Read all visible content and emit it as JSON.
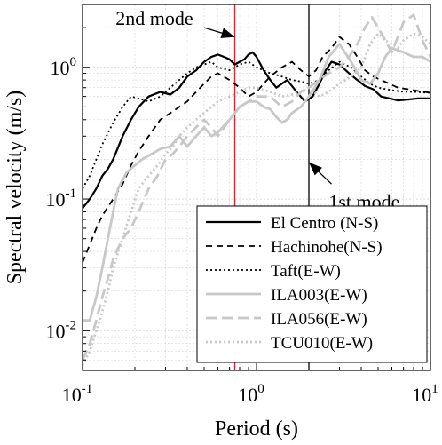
{
  "chart_data": {
    "type": "line",
    "title": "",
    "xlabel": "Period (s)",
    "ylabel": "Spectral velocity (m/s)",
    "xscale": "log",
    "yscale": "log",
    "xlim": [
      0.1,
      10
    ],
    "ylim": [
      0.005,
      3
    ],
    "grid": true,
    "legend_position": "bottom-right",
    "x_ticks": [
      {
        "value": 0.1,
        "base": "10",
        "exp": "-1"
      },
      {
        "value": 1,
        "base": "10",
        "exp": "0"
      },
      {
        "value": 10,
        "base": "10",
        "exp": "1"
      }
    ],
    "y_ticks": [
      {
        "value": 0.01,
        "base": "10",
        "exp": "-2"
      },
      {
        "value": 0.1,
        "base": "10",
        "exp": "-1"
      },
      {
        "value": 1,
        "base": "10",
        "exp": "0"
      }
    ],
    "vlines": [
      {
        "x": 0.75,
        "color": "#e0202a"
      },
      {
        "x": 2.0,
        "color": "#000000"
      }
    ],
    "annotations": [
      {
        "text": "2nd mode",
        "x": 0.75,
        "y": 1.7,
        "arrow_from": [
          0.5,
          2.0
        ],
        "text_pos": [
          0.155,
          2.1
        ]
      },
      {
        "text": "1st mode",
        "x": 2.0,
        "y": 0.19,
        "arrow_from": [
          2.7,
          0.13
        ],
        "text_pos": [
          2.6,
          0.085
        ]
      }
    ],
    "series": [
      {
        "name": "El Centro (N-S)",
        "color": "#000000",
        "dash": "solid",
        "width": 2.2,
        "x": [
          0.1,
          0.11,
          0.12,
          0.13,
          0.14,
          0.15,
          0.17,
          0.19,
          0.21,
          0.24,
          0.28,
          0.32,
          0.36,
          0.4,
          0.45,
          0.5,
          0.55,
          0.6,
          0.65,
          0.7,
          0.75,
          0.8,
          0.85,
          0.9,
          0.95,
          1.0,
          1.1,
          1.2,
          1.3,
          1.4,
          1.5,
          1.7,
          1.9,
          2.1,
          2.3,
          2.5,
          2.7,
          3.0,
          3.4,
          3.8,
          4.2,
          4.7,
          5.2,
          5.8,
          6.5,
          7.5,
          8.5,
          10
        ],
        "values": [
          0.085,
          0.1,
          0.12,
          0.15,
          0.17,
          0.2,
          0.3,
          0.4,
          0.5,
          0.6,
          0.65,
          0.62,
          0.7,
          0.85,
          0.95,
          1.1,
          1.2,
          1.25,
          1.2,
          1.15,
          1.05,
          1.1,
          1.15,
          1.25,
          1.3,
          1.2,
          0.95,
          0.8,
          0.7,
          0.75,
          0.8,
          0.65,
          0.55,
          0.6,
          0.75,
          0.95,
          1.1,
          1.05,
          0.9,
          0.8,
          0.72,
          0.68,
          0.6,
          0.58,
          0.56,
          0.57,
          0.58,
          0.58
        ]
      },
      {
        "name": "Hachinohe(N-S)",
        "color": "#000000",
        "dash": "7,5",
        "width": 1.8,
        "x": [
          0.1,
          0.11,
          0.12,
          0.13,
          0.15,
          0.17,
          0.19,
          0.21,
          0.24,
          0.28,
          0.32,
          0.36,
          0.4,
          0.45,
          0.5,
          0.55,
          0.6,
          0.7,
          0.8,
          0.9,
          1.0,
          1.1,
          1.2,
          1.4,
          1.6,
          1.8,
          2.0,
          2.2,
          2.4,
          2.7,
          3.0,
          3.4,
          3.8,
          4.2,
          4.7,
          5.2,
          5.8,
          6.5,
          7.5,
          8.5,
          10
        ],
        "values": [
          0.033,
          0.045,
          0.06,
          0.075,
          0.1,
          0.13,
          0.18,
          0.23,
          0.3,
          0.4,
          0.45,
          0.5,
          0.55,
          0.65,
          0.75,
          0.85,
          0.9,
          0.8,
          0.7,
          0.6,
          0.65,
          0.75,
          0.85,
          1.0,
          1.1,
          0.95,
          0.85,
          0.95,
          1.2,
          1.4,
          1.7,
          1.5,
          1.2,
          0.95,
          0.85,
          0.8,
          0.75,
          0.7,
          0.68,
          0.66,
          0.64
        ]
      },
      {
        "name": "Taft(E-W)",
        "color": "#000000",
        "dash": "2,3",
        "width": 1.8,
        "x": [
          0.1,
          0.11,
          0.12,
          0.13,
          0.15,
          0.17,
          0.19,
          0.21,
          0.24,
          0.28,
          0.32,
          0.36,
          0.4,
          0.45,
          0.5,
          0.55,
          0.6,
          0.7,
          0.8,
          0.9,
          1.0,
          1.2,
          1.4,
          1.6,
          1.8,
          2.0,
          2.3,
          2.6,
          3.0,
          3.5,
          4.0,
          4.5,
          5.0,
          6.0,
          7.0,
          8.0,
          10
        ],
        "values": [
          0.12,
          0.15,
          0.2,
          0.26,
          0.38,
          0.5,
          0.6,
          0.58,
          0.55,
          0.6,
          0.7,
          0.8,
          0.9,
          1.0,
          1.05,
          1.1,
          1.0,
          0.95,
          1.05,
          1.1,
          1.0,
          0.9,
          0.85,
          0.8,
          0.78,
          0.75,
          0.8,
          0.95,
          1.1,
          1.0,
          0.85,
          0.75,
          0.7,
          0.67,
          0.65,
          0.65,
          0.64
        ]
      },
      {
        "name": "ILA003(E-W)",
        "color": "#c8c8c8",
        "dash": "solid",
        "width": 2.8,
        "x": [
          0.1,
          0.11,
          0.12,
          0.13,
          0.14,
          0.15,
          0.16,
          0.18,
          0.2,
          0.22,
          0.25,
          0.28,
          0.32,
          0.36,
          0.4,
          0.45,
          0.5,
          0.55,
          0.6,
          0.7,
          0.8,
          0.9,
          1.0,
          1.1,
          1.2,
          1.3,
          1.4,
          1.5,
          1.6,
          1.8,
          2.0,
          2.3,
          2.6,
          3.0,
          3.5,
          4.0,
          4.5,
          5.0,
          5.5,
          6.0,
          7.0,
          8.0,
          9.0,
          10
        ],
        "values": [
          0.012,
          0.012,
          0.018,
          0.03,
          0.05,
          0.08,
          0.12,
          0.16,
          0.18,
          0.2,
          0.22,
          0.24,
          0.25,
          0.3,
          0.25,
          0.3,
          0.35,
          0.3,
          0.32,
          0.4,
          0.5,
          0.55,
          0.55,
          0.5,
          0.48,
          0.42,
          0.38,
          0.4,
          0.45,
          0.5,
          0.6,
          0.8,
          1.2,
          1.5,
          1.1,
          0.8,
          0.75,
          0.9,
          1.2,
          1.4,
          1.3,
          1.2,
          1.2,
          1.1
        ]
      },
      {
        "name": "ILA056(E-W)",
        "color": "#c8c8c8",
        "dash": "12,6",
        "width": 2.8,
        "x": [
          0.1,
          0.11,
          0.12,
          0.13,
          0.14,
          0.15,
          0.17,
          0.19,
          0.21,
          0.24,
          0.27,
          0.3,
          0.33,
          0.36,
          0.4,
          0.45,
          0.5,
          0.55,
          0.6,
          0.7,
          0.8,
          0.9,
          1.0,
          1.2,
          1.4,
          1.6,
          1.8,
          2.0,
          2.3,
          2.6,
          3.0,
          3.4,
          3.8,
          4.2,
          4.6,
          5.0,
          5.5,
          6.0,
          7.0,
          8.0,
          9.0,
          10
        ],
        "values": [
          0.006,
          0.008,
          0.012,
          0.018,
          0.025,
          0.035,
          0.05,
          0.06,
          0.08,
          0.12,
          0.15,
          0.2,
          0.22,
          0.25,
          0.3,
          0.35,
          0.4,
          0.35,
          0.3,
          0.4,
          0.5,
          0.55,
          0.6,
          0.6,
          0.5,
          0.55,
          0.65,
          0.7,
          0.8,
          0.9,
          1.0,
          1.2,
          1.5,
          2.0,
          2.4,
          2.0,
          1.6,
          1.3,
          2.2,
          2.5,
          1.6,
          1.2
        ]
      },
      {
        "name": "TCU010(E-W)",
        "color": "#c8c8c8",
        "dash": "2,3",
        "width": 2.8,
        "x": [
          0.1,
          0.11,
          0.12,
          0.13,
          0.14,
          0.15,
          0.17,
          0.19,
          0.21,
          0.24,
          0.27,
          0.3,
          0.33,
          0.36,
          0.4,
          0.45,
          0.5,
          0.55,
          0.6,
          0.7,
          0.8,
          0.9,
          1.0,
          1.2,
          1.4,
          1.6,
          1.8,
          2.0,
          2.3,
          2.6,
          3.0,
          3.5,
          4.0,
          4.5,
          5.0,
          5.5,
          6.0,
          6.5,
          7.0,
          8.0,
          9.0,
          10
        ],
        "values": [
          0.0055,
          0.007,
          0.01,
          0.014,
          0.02,
          0.03,
          0.05,
          0.08,
          0.12,
          0.15,
          0.18,
          0.22,
          0.25,
          0.3,
          0.35,
          0.4,
          0.45,
          0.5,
          0.55,
          0.6,
          0.65,
          0.7,
          0.7,
          0.65,
          0.6,
          0.62,
          0.65,
          0.7,
          0.6,
          0.65,
          0.75,
          0.85,
          1.0,
          1.5,
          1.8,
          1.6,
          1.5,
          1.4,
          1.6,
          1.8,
          1.7,
          1.5
        ]
      }
    ]
  }
}
